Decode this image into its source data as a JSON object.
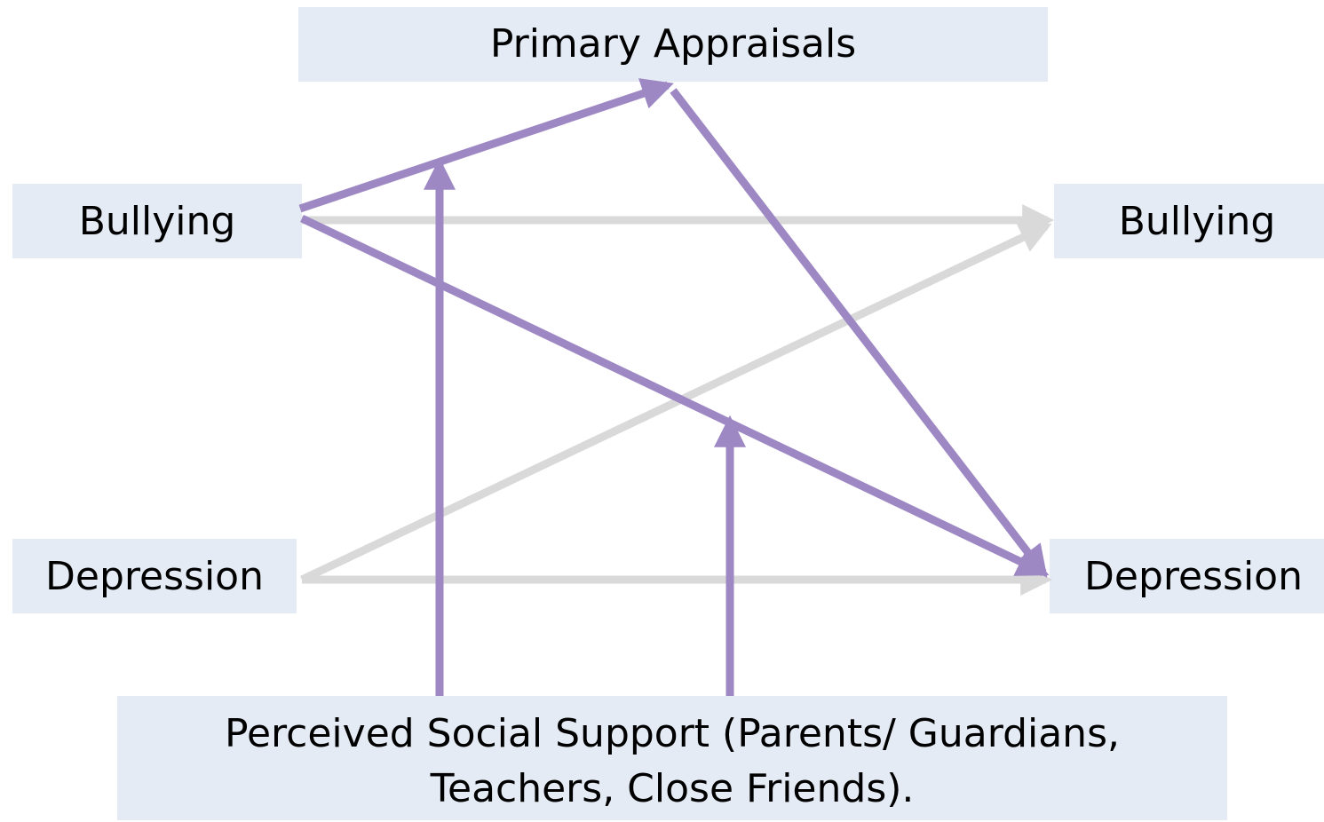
{
  "nodes": [
    {
      "label": "Primary Appraisals"
    },
    {
      "label": "Bullying"
    },
    {
      "label": "Bullying"
    },
    {
      "label": "Depression"
    },
    {
      "label": "Depression"
    },
    {
      "lines": [
        "Perceived Social Support (Parents/ Guardians,",
        "Teachers, Close Friends)."
      ]
    }
  ]
}
